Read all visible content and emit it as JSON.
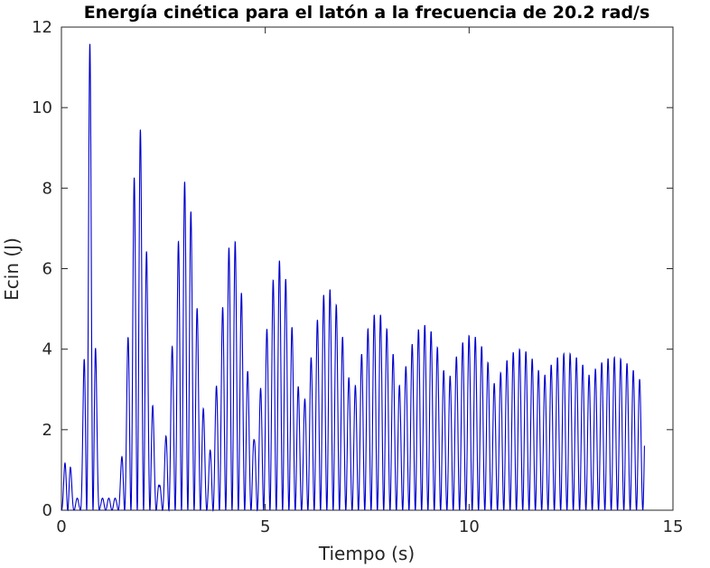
{
  "chart_data": {
    "type": "line",
    "title": "Energía cinética para el latón a la frecuencia de 20.2 rad/s",
    "xlabel": "Tiempo (s)",
    "ylabel": "Ecin (J)",
    "xlim": [
      0,
      15
    ],
    "ylim": [
      0,
      12
    ],
    "xticks": [
      0,
      5,
      10,
      15
    ],
    "yticks": [
      0,
      2,
      4,
      6,
      8,
      10,
      12
    ],
    "grid": false,
    "colors": {
      "line": "#0000cc",
      "axes": "#262626",
      "background": "#ffffff"
    },
    "x_end": 14.3,
    "series": [
      {
        "group_centers": [
          0.15,
          0.7,
          1.9,
          3.05,
          4.2,
          5.35,
          6.55,
          7.75,
          8.9,
          10.05,
          11.25,
          12.4,
          13.55
        ],
        "group_peaks": [
          1.6,
          11.6,
          9.6,
          8.2,
          6.8,
          6.2,
          5.5,
          4.9,
          4.6,
          4.35,
          4.0,
          3.9,
          3.8
        ],
        "group_widths": [
          0.12,
          0.14,
          0.3,
          0.4,
          0.45,
          0.55,
          0.7,
          0.8,
          0.9,
          1.0,
          1.2,
          1.4,
          1.6
        ],
        "oscillation_period_s": 0.155,
        "floor": 0.3
      }
    ]
  }
}
